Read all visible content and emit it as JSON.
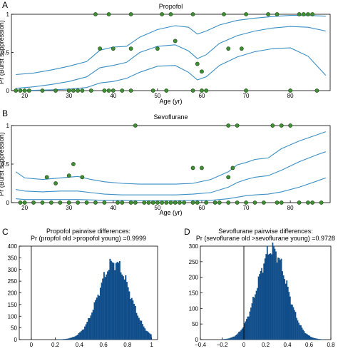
{
  "chart_data": [
    {
      "panel_letter": "A",
      "type": "scatter",
      "title": "Propofol",
      "xlabel": "Age (yr)",
      "ylabel": "Pr (Burst suppression)",
      "xlim": [
        17,
        89
      ],
      "ylim": [
        0,
        1
      ],
      "xticks": [
        20,
        30,
        40,
        50,
        60,
        70,
        80
      ],
      "yticks": [
        0,
        0.5,
        1
      ],
      "ytick_labels": [
        "0",
        "0.5",
        "1"
      ],
      "grid": false,
      "series": [
        {
          "kind": "line",
          "values": [
            [
              18,
              0.21
            ],
            [
              22,
              0.23
            ],
            [
              26,
              0.27
            ],
            [
              30,
              0.32
            ],
            [
              34,
              0.38
            ],
            [
              37,
              0.53
            ],
            [
              40,
              0.57
            ],
            [
              43,
              0.58
            ],
            [
              46,
              0.7
            ],
            [
              50,
              0.8
            ],
            [
              54,
              0.85
            ],
            [
              57,
              0.83
            ],
            [
              59,
              0.74
            ],
            [
              61,
              0.78
            ],
            [
              64,
              0.86
            ],
            [
              68,
              0.92
            ],
            [
              72,
              0.95
            ],
            [
              76,
              0.97
            ],
            [
              80,
              0.985
            ],
            [
              84,
              0.985
            ],
            [
              88,
              0.975
            ]
          ]
        },
        {
          "kind": "line",
          "values": [
            [
              18,
              0.03
            ],
            [
              22,
              0.05
            ],
            [
              26,
              0.08
            ],
            [
              30,
              0.12
            ],
            [
              34,
              0.18
            ],
            [
              37,
              0.3
            ],
            [
              40,
              0.33
            ],
            [
              43,
              0.37
            ],
            [
              46,
              0.5
            ],
            [
              50,
              0.58
            ],
            [
              54,
              0.6
            ],
            [
              57,
              0.52
            ],
            [
              59,
              0.42
            ],
            [
              61,
              0.47
            ],
            [
              64,
              0.62
            ],
            [
              68,
              0.72
            ],
            [
              72,
              0.78
            ],
            [
              76,
              0.82
            ],
            [
              80,
              0.84
            ],
            [
              84,
              0.83
            ],
            [
              88,
              0.78
            ]
          ]
        },
        {
          "kind": "line",
          "values": [
            [
              18,
              0.0
            ],
            [
              22,
              0.005
            ],
            [
              26,
              0.01
            ],
            [
              30,
              0.02
            ],
            [
              34,
              0.04
            ],
            [
              37,
              0.1
            ],
            [
              40,
              0.12
            ],
            [
              43,
              0.16
            ],
            [
              46,
              0.24
            ],
            [
              50,
              0.32
            ],
            [
              54,
              0.33
            ],
            [
              57,
              0.24
            ],
            [
              59,
              0.14
            ],
            [
              61,
              0.18
            ],
            [
              64,
              0.33
            ],
            [
              68,
              0.44
            ],
            [
              72,
              0.51
            ],
            [
              76,
              0.55
            ],
            [
              80,
              0.56
            ],
            [
              84,
              0.45
            ],
            [
              88,
              0.2
            ]
          ]
        },
        {
          "kind": "points",
          "values": [
            [
              18,
              0
            ],
            [
              19,
              0
            ],
            [
              20,
              0
            ],
            [
              21,
              0
            ],
            [
              24,
              0
            ],
            [
              27,
              0
            ],
            [
              30,
              0
            ],
            [
              31,
              0
            ],
            [
              32,
              0
            ],
            [
              33,
              0
            ],
            [
              35,
              0
            ],
            [
              38,
              0
            ],
            [
              39,
              0
            ],
            [
              40,
              0
            ],
            [
              42,
              0
            ],
            [
              44,
              0
            ],
            [
              49,
              0
            ],
            [
              52,
              0
            ],
            [
              58,
              0
            ],
            [
              60,
              0
            ],
            [
              61,
              0
            ],
            [
              70,
              0
            ],
            [
              80,
              0
            ],
            [
              86,
              0
            ],
            [
              37,
              0.55
            ],
            [
              40,
              0.55
            ],
            [
              44,
              0.55
            ],
            [
              50,
              0.55
            ],
            [
              54,
              0.65
            ],
            [
              59,
              0.35
            ],
            [
              60,
              0.25
            ],
            [
              66,
              0.55
            ],
            [
              69,
              0.55
            ],
            [
              36,
              1
            ],
            [
              39,
              1
            ],
            [
              44,
              1
            ],
            [
              51,
              1
            ],
            [
              53,
              1
            ],
            [
              58,
              1
            ],
            [
              65,
              1
            ],
            [
              70,
              1
            ],
            [
              75,
              1
            ],
            [
              77,
              1
            ],
            [
              82,
              1
            ],
            [
              83,
              1
            ],
            [
              84,
              1
            ],
            [
              85,
              1
            ]
          ]
        }
      ]
    },
    {
      "panel_letter": "B",
      "type": "scatter",
      "title": "Sevoflurane",
      "xlabel": "Age (yr)",
      "ylabel": "Pr (Burst suppression)",
      "xlim": [
        17,
        89
      ],
      "ylim": [
        0,
        1
      ],
      "xticks": [
        20,
        30,
        40,
        50,
        60,
        70,
        80
      ],
      "yticks": [
        0,
        0.5,
        1
      ],
      "ytick_labels": [
        "0",
        "0.5",
        "1"
      ],
      "grid": false,
      "series": [
        {
          "kind": "line",
          "values": [
            [
              18,
              0.4
            ],
            [
              20,
              0.32
            ],
            [
              24,
              0.3
            ],
            [
              28,
              0.32
            ],
            [
              32,
              0.34
            ],
            [
              35,
              0.3
            ],
            [
              38,
              0.27
            ],
            [
              42,
              0.25
            ],
            [
              46,
              0.24
            ],
            [
              50,
              0.24
            ],
            [
              54,
              0.24
            ],
            [
              58,
              0.25
            ],
            [
              62,
              0.3
            ],
            [
              66,
              0.4
            ],
            [
              68,
              0.49
            ],
            [
              70,
              0.52
            ],
            [
              72,
              0.56
            ],
            [
              75,
              0.58
            ],
            [
              78,
              0.7
            ],
            [
              82,
              0.8
            ],
            [
              86,
              0.88
            ],
            [
              88,
              0.92
            ]
          ]
        },
        {
          "kind": "line",
          "values": [
            [
              18,
              0.17
            ],
            [
              20,
              0.15
            ],
            [
              24,
              0.14
            ],
            [
              28,
              0.15
            ],
            [
              32,
              0.15
            ],
            [
              35,
              0.13
            ],
            [
              38,
              0.11
            ],
            [
              42,
              0.1
            ],
            [
              46,
              0.1
            ],
            [
              50,
              0.1
            ],
            [
              54,
              0.1
            ],
            [
              58,
              0.11
            ],
            [
              62,
              0.13
            ],
            [
              66,
              0.2
            ],
            [
              68,
              0.26
            ],
            [
              70,
              0.3
            ],
            [
              72,
              0.33
            ],
            [
              75,
              0.35
            ],
            [
              78,
              0.42
            ],
            [
              82,
              0.53
            ],
            [
              86,
              0.62
            ],
            [
              88,
              0.66
            ]
          ]
        },
        {
          "kind": "line",
          "values": [
            [
              18,
              0.05
            ],
            [
              20,
              0.04
            ],
            [
              24,
              0.04
            ],
            [
              28,
              0.04
            ],
            [
              32,
              0.04
            ],
            [
              35,
              0.035
            ],
            [
              38,
              0.03
            ],
            [
              42,
              0.03
            ],
            [
              46,
              0.025
            ],
            [
              50,
              0.025
            ],
            [
              54,
              0.025
            ],
            [
              58,
              0.03
            ],
            [
              62,
              0.03
            ],
            [
              66,
              0.05
            ],
            [
              68,
              0.07
            ],
            [
              70,
              0.09
            ],
            [
              72,
              0.1
            ],
            [
              75,
              0.11
            ],
            [
              78,
              0.14
            ],
            [
              82,
              0.2
            ],
            [
              86,
              0.28
            ],
            [
              88,
              0.32
            ]
          ]
        },
        {
          "kind": "points",
          "values": [
            [
              19,
              0
            ],
            [
              20,
              0
            ],
            [
              22,
              0
            ],
            [
              24,
              0
            ],
            [
              26,
              0
            ],
            [
              28,
              0
            ],
            [
              30,
              0
            ],
            [
              32,
              0
            ],
            [
              34,
              0
            ],
            [
              36,
              0
            ],
            [
              38,
              0
            ],
            [
              41,
              0
            ],
            [
              42,
              0
            ],
            [
              44,
              0
            ],
            [
              45,
              0
            ],
            [
              47,
              0
            ],
            [
              48,
              0
            ],
            [
              49,
              0
            ],
            [
              50,
              0
            ],
            [
              51,
              0
            ],
            [
              52,
              0
            ],
            [
              53,
              0
            ],
            [
              54,
              0
            ],
            [
              55,
              0
            ],
            [
              56,
              0
            ],
            [
              58,
              0
            ],
            [
              59,
              0
            ],
            [
              61,
              0
            ],
            [
              63,
              0
            ],
            [
              64,
              0
            ],
            [
              66,
              0
            ],
            [
              68,
              0
            ],
            [
              70,
              0
            ],
            [
              72,
              0
            ],
            [
              74,
              0
            ],
            [
              77,
              0
            ],
            [
              78,
              0
            ],
            [
              82,
              0
            ],
            [
              84,
              0
            ],
            [
              85,
              0
            ],
            [
              87,
              0
            ],
            [
              25,
              0.33
            ],
            [
              27,
              0.25
            ],
            [
              30,
              0.35
            ],
            [
              31,
              0.5
            ],
            [
              33,
              0.33
            ],
            [
              58,
              0.45
            ],
            [
              60,
              0.45
            ],
            [
              66,
              0.33
            ],
            [
              67,
              0.45
            ],
            [
              45,
              1
            ],
            [
              66,
              1
            ],
            [
              68,
              1
            ],
            [
              76,
              1
            ],
            [
              78,
              1
            ],
            [
              80,
              1
            ]
          ]
        }
      ]
    },
    {
      "panel_letter": "C",
      "type": "bar",
      "title": "Propofol pairwise differences:",
      "subtitle": "Pr (propfol old >propofol young) =0.9999",
      "xlabel": "",
      "ylabel": "",
      "xlim": [
        -0.1,
        1.05
      ],
      "ylim": [
        0,
        400
      ],
      "xticks": [
        0,
        0.2,
        0.4,
        0.6,
        0.8,
        1
      ],
      "xtick_labels": [
        "0",
        "0.2",
        "0.4",
        "0.6",
        "0.8",
        "1"
      ],
      "yticks": [
        0,
        50,
        100,
        150,
        200,
        250,
        300,
        350,
        400
      ],
      "ytick_labels": [
        "0",
        "50",
        "100",
        "150",
        "200",
        "250",
        "300",
        "350",
        "400"
      ],
      "vertical_line_x": 0,
      "histogram": {
        "mean": 0.69,
        "sd": 0.13,
        "peak": 330,
        "xmin": 0.15,
        "xmax": 1.0,
        "bin_width": 0.01
      }
    },
    {
      "panel_letter": "D",
      "type": "bar",
      "title": "Sevoflurane pairwise differences:",
      "subtitle": "Pr (sevoflurane old >sevoflurane young) =0.9728",
      "xlabel": "",
      "ylabel": "",
      "xlim": [
        -0.4,
        0.8
      ],
      "ylim": [
        0,
        300
      ],
      "xticks": [
        -0.4,
        -0.2,
        0,
        0.2,
        0.4,
        0.6,
        0.8
      ],
      "xtick_labels": [
        "−0.4",
        "−0.2",
        "0",
        "0.2",
        "0.4",
        "0.6",
        "0.8"
      ],
      "yticks": [
        0,
        50,
        100,
        150,
        200,
        250,
        300
      ],
      "ytick_labels": [
        "0",
        "50",
        "100",
        "150",
        "200",
        "250",
        "300"
      ],
      "vertical_line_x": 0,
      "histogram": {
        "mean": 0.26,
        "sd": 0.135,
        "peak": 290,
        "xmin": -0.2,
        "xmax": 0.75,
        "bin_width": 0.01
      }
    }
  ],
  "colors": {
    "curve": "#3a8fc4",
    "point_fill": "#3f8e35",
    "point_stroke": "#1d4a14",
    "bar": "#0f4d8a",
    "axis": "#000000"
  }
}
